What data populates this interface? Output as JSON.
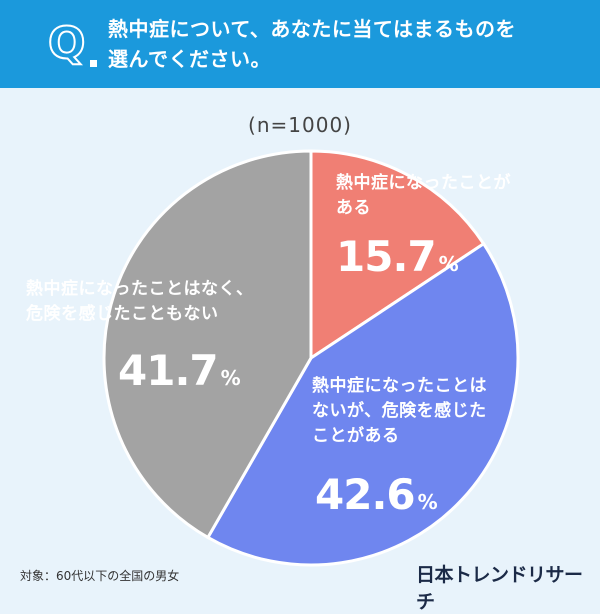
{
  "header": {
    "q_mark": "Q",
    "question_lines": [
      "熱中症について、あなたに当てはまるものを",
      "選んでください。"
    ]
  },
  "sample_note": "(n=1000)",
  "chart_data": {
    "type": "pie",
    "title": "熱中症について、あなたに当てはまるものを選んでください。",
    "n": 1000,
    "unit": "%",
    "start_angle": "12 o'clock, clockwise",
    "slices": [
      {
        "label_lines": [
          "熱中症になったことが",
          "ある"
        ],
        "value": 15.7,
        "value_text": "15.7",
        "color": "#f07f74"
      },
      {
        "label_lines": [
          "熱中症になったことは",
          "ないが、危険を感じた",
          "ことがある"
        ],
        "value": 42.6,
        "value_text": "42.6",
        "color": "#6f86ef"
      },
      {
        "label_lines": [
          "熱中症になったことはなく、",
          "危険を感じたこともない"
        ],
        "value": 41.7,
        "value_text": "41.7",
        "color": "#a3a3a3"
      }
    ]
  },
  "footnote": "対象：60代以下の全国の男女",
  "brand": "日本トレンドリサーチ",
  "colors": {
    "header_bg": "#1b99dc",
    "page_bg": "#e8f3fb"
  }
}
